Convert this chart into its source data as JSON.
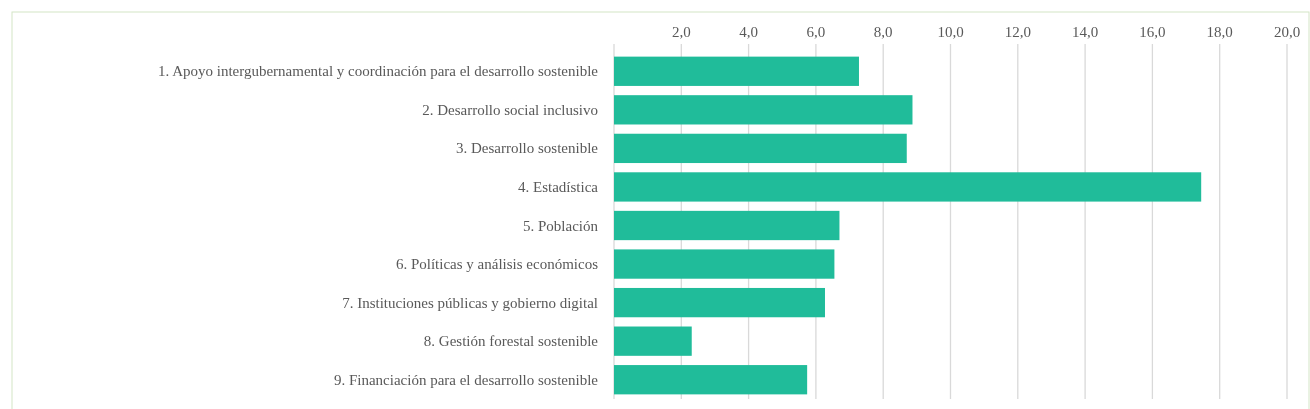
{
  "chart_data": {
    "type": "bar",
    "orientation": "horizontal",
    "categories": [
      "1. Apoyo intergubernamental y coordinación para el desarrollo sostenible",
      "2. Desarrollo social inclusivo",
      "3. Desarrollo sostenible",
      "4. Estadística",
      "5. Población",
      "6. Políticas y análisis económicos",
      "7. Instituciones públicas y gobierno digital",
      "8. Gestión forestal sostenible",
      "9. Financiación para el desarrollo sostenible"
    ],
    "values": [
      7.28,
      8.87,
      8.7,
      17.45,
      6.7,
      6.55,
      6.27,
      2.31,
      5.74
    ],
    "color": "#20bc9a",
    "xlim": [
      0,
      20
    ],
    "xticks": [
      {
        "value": 0,
        "label": null
      },
      {
        "value": 2,
        "label": "2,0"
      },
      {
        "value": 4,
        "label": "4,0"
      },
      {
        "value": 6,
        "label": "6,0"
      },
      {
        "value": 8,
        "label": "8,0"
      },
      {
        "value": 10,
        "label": "10,0"
      },
      {
        "value": 12,
        "label": "12,0"
      },
      {
        "value": 14,
        "label": "14,0"
      },
      {
        "value": 16,
        "label": "16,0"
      },
      {
        "value": 18,
        "label": "18,0"
      },
      {
        "value": 20,
        "label": "20,0"
      }
    ],
    "grid": "x"
  }
}
